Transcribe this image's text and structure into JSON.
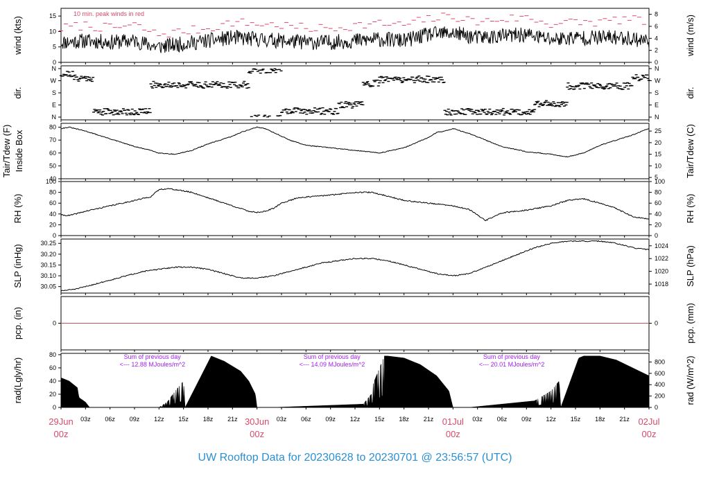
{
  "footer": {
    "title": "UW Rooftop Data for 20230628  to  20230701 @ 23:56:57  (UTC)"
  },
  "colors": {
    "trace": "#000000",
    "peak": "#d94a6a",
    "annotation": "#a020f0",
    "day_label": "#d94a6a",
    "footer": "#2b8fd0",
    "pcp_line": "#c8505a"
  },
  "time_axis": {
    "hour_ticks": [
      "03z",
      "06z",
      "09z",
      "12z",
      "15z",
      "18z",
      "21z",
      "03z",
      "06z",
      "09z",
      "12z",
      "15z",
      "18z",
      "21z",
      "03z",
      "06z",
      "09z",
      "12z",
      "15z",
      "18z",
      "21z"
    ],
    "day_labels": [
      {
        "date": "29Jun",
        "time": "00z"
      },
      {
        "date": "30Jun",
        "time": "00z"
      },
      {
        "date": "01Jul",
        "time": "00z"
      },
      {
        "date": "02Jul",
        "time": "00z"
      }
    ]
  },
  "chart_data": [
    {
      "id": "wind",
      "type": "line",
      "ylabel": "wind (kts)",
      "ylabel_right": "wind (m/s)",
      "ylim": [
        0,
        17.5
      ],
      "yticks": [
        0,
        5,
        10,
        15
      ],
      "right_ylim": [
        0,
        9
      ],
      "right_yticks": [
        0,
        2,
        4,
        6,
        8
      ],
      "annotation": "10 min. peak winds in red",
      "series": [
        {
          "name": "",
          "x": [
            0,
            3,
            6,
            9,
            11.8,
            15,
            18,
            21,
            24,
            27,
            30,
            33,
            36,
            39,
            42,
            45,
            48,
            51,
            54,
            57,
            60,
            63,
            66,
            69,
            72
          ],
          "y": [
            6.5,
            7,
            6.5,
            7,
            5,
            6,
            7,
            8,
            7.5,
            7,
            6.5,
            6.5,
            7,
            7.5,
            7,
            9,
            9.5,
            8,
            8.5,
            9,
            7.5,
            8,
            8,
            8,
            7
          ]
        },
        {
          "name": "10 min. peak winds",
          "x": [
            0,
            3,
            6,
            9,
            11.8,
            15,
            18,
            21,
            24,
            27,
            30,
            33,
            36,
            39,
            42,
            45,
            48,
            51,
            54,
            57,
            60,
            63,
            66,
            69,
            72
          ],
          "y": [
            11,
            12,
            11,
            12,
            9,
            10,
            11,
            13,
            12.5,
            12,
            11,
            11,
            12,
            12.5,
            12,
            14,
            15,
            13,
            14,
            14.5,
            12.5,
            13,
            13,
            14,
            13
          ]
        }
      ]
    },
    {
      "id": "dir",
      "type": "scatter",
      "ylabel": "dir.",
      "ylabel_right": "dir.",
      "ylim": [
        0,
        360
      ],
      "ytick_labels": [
        "N",
        "E",
        "S",
        "W",
        "N"
      ],
      "yticks": [
        0,
        90,
        180,
        270,
        360
      ],
      "segments": [
        {
          "x0": 0,
          "x1": 1.5,
          "deg": 320
        },
        {
          "x0": 1.5,
          "x1": 4,
          "deg": 290
        },
        {
          "x0": 4,
          "x1": 11,
          "deg": 40
        },
        {
          "x0": 11,
          "x1": 23,
          "deg": 240
        },
        {
          "x0": 23,
          "x1": 27,
          "deg": 350
        },
        {
          "x0": 27,
          "x1": 34,
          "deg": 45
        },
        {
          "x0": 34,
          "x1": 37,
          "deg": 90
        },
        {
          "x0": 37,
          "x1": 39,
          "deg": 250
        },
        {
          "x0": 39,
          "x1": 47,
          "deg": 280
        },
        {
          "x0": 47,
          "x1": 58,
          "deg": 40
        },
        {
          "x0": 58,
          "x1": 62,
          "deg": 100
        },
        {
          "x0": 62,
          "x1": 70,
          "deg": 230
        },
        {
          "x0": 70,
          "x1": 72,
          "deg": 290
        }
      ]
    },
    {
      "id": "tair",
      "type": "line",
      "ylabel": "Tair/Tdew (F)",
      "ylabel2": "Inside Box",
      "ylabel_right": "Tair/Tdew (C)",
      "ylim": [
        40,
        83
      ],
      "yticks": [
        40,
        50,
        60,
        70,
        80
      ],
      "right_ylim": [
        4.44,
        28.33
      ],
      "right_yticks": [
        5,
        10,
        15,
        20,
        25
      ],
      "series": [
        {
          "name": "",
          "x": [
            0,
            1,
            3,
            6,
            9,
            11,
            12,
            14,
            16,
            18,
            21,
            22,
            23,
            24,
            25,
            26,
            28,
            30,
            33,
            36,
            39,
            42,
            45,
            46,
            47,
            48,
            50,
            52,
            54,
            57,
            60,
            62,
            64,
            66,
            68,
            70,
            72
          ],
          "y": [
            79,
            80,
            77,
            71,
            65,
            62,
            60,
            59,
            62,
            67,
            73,
            76,
            78,
            80,
            79,
            76,
            70,
            66,
            64,
            62,
            60,
            64,
            72,
            76,
            77,
            79,
            75,
            70,
            65,
            61,
            59,
            57,
            60,
            66,
            70,
            74,
            79
          ]
        }
      ]
    },
    {
      "id": "rh",
      "type": "line",
      "ylabel": "RH (%)",
      "ylabel_right": "RH (%)",
      "ylim": [
        0,
        100
      ],
      "yticks": [
        0,
        20,
        40,
        60,
        80,
        100
      ],
      "series": [
        {
          "name": "",
          "x": [
            0,
            1,
            3,
            6,
            9,
            11,
            12,
            13,
            14,
            16,
            18,
            21,
            23,
            24,
            25,
            26,
            27,
            29,
            33,
            36,
            38,
            40,
            42,
            45,
            48,
            50,
            51,
            52,
            53,
            54,
            57,
            60,
            62,
            64,
            66,
            68,
            70,
            72
          ],
          "y": [
            38,
            37,
            45,
            55,
            65,
            72,
            85,
            87,
            85,
            80,
            70,
            55,
            45,
            43,
            45,
            50,
            60,
            70,
            75,
            80,
            80,
            73,
            65,
            60,
            55,
            48,
            38,
            28,
            35,
            42,
            47,
            55,
            65,
            68,
            60,
            50,
            35,
            30
          ]
        }
      ]
    },
    {
      "id": "slp",
      "type": "line",
      "ylabel": "SLP (inHg)",
      "ylabel_right": "SLP (hPa)",
      "ylim": [
        30.02,
        30.27
      ],
      "yticks": [
        30.05,
        30.1,
        30.15,
        30.2,
        30.25
      ],
      "right_yticks": [
        1018,
        1020,
        1022,
        1024
      ],
      "series": [
        {
          "name": "",
          "x": [
            0,
            2,
            4,
            6,
            8,
            10,
            12,
            14,
            16,
            18,
            20,
            22,
            24,
            26,
            28,
            30,
            32,
            34,
            36,
            38,
            40,
            42,
            44,
            46,
            48,
            50,
            52,
            54,
            56,
            58,
            60,
            62,
            64,
            66,
            68,
            70,
            72
          ],
          "y": [
            30.03,
            30.04,
            30.06,
            30.08,
            30.1,
            30.12,
            30.13,
            30.14,
            30.14,
            30.13,
            30.11,
            30.09,
            30.09,
            30.1,
            30.12,
            30.14,
            30.16,
            30.17,
            30.18,
            30.18,
            30.17,
            30.15,
            30.13,
            30.11,
            30.1,
            30.11,
            30.14,
            30.17,
            30.2,
            30.23,
            30.25,
            30.26,
            30.26,
            30.26,
            30.25,
            30.23,
            30.22
          ]
        }
      ]
    },
    {
      "id": "pcp",
      "type": "line",
      "ylabel": "pcp. (in)",
      "ylabel_right": "pcp. (mm)",
      "ylim": [
        -1,
        1
      ],
      "yticks": [
        0
      ],
      "right_yticks": [
        0
      ],
      "series": [
        {
          "name": "",
          "x": [
            0,
            72
          ],
          "y": [
            0,
            0
          ]
        }
      ]
    },
    {
      "id": "rad",
      "type": "area",
      "ylabel": "rad(Lgly/hr)",
      "ylabel_right": "rad (W/m^2)",
      "ylim": [
        0,
        82
      ],
      "yticks": [
        0,
        20,
        40,
        60,
        80
      ],
      "right_ylim": [
        0,
        952
      ],
      "right_yticks": [
        0,
        200,
        400,
        600,
        800
      ],
      "annotations": [
        {
          "line1": "Sum of previous day",
          "line2": "<--- 12.88 MJoules/m^2",
          "x": 6
        },
        {
          "line1": "Sum of previous day",
          "line2": "<--- 14.09 MJoules/m^2",
          "x": 28
        },
        {
          "line1": "Sum of previous day",
          "line2": "<--- 20.01 MJoules/m^2",
          "x": 50
        }
      ],
      "series": [
        {
          "name": "",
          "x": [
            0,
            1,
            2,
            2.2,
            3,
            3.5,
            12,
            13,
            14,
            15,
            15.2,
            18.4,
            19,
            20,
            22,
            23,
            23.8,
            24,
            26,
            37,
            38,
            38.2,
            39.6,
            40,
            42,
            44,
            46,
            47.5,
            48,
            50,
            58,
            60,
            61,
            61.2,
            63.4,
            64,
            66,
            68,
            70,
            72
          ],
          "y": [
            45,
            40,
            30,
            15,
            8,
            0,
            0,
            8,
            25,
            40,
            0,
            78,
            75,
            70,
            55,
            40,
            20,
            0,
            0,
            5,
            20,
            35,
            78,
            78,
            75,
            65,
            48,
            25,
            0,
            0,
            10,
            25,
            40,
            0,
            75,
            78,
            78,
            72,
            60,
            48
          ]
        }
      ]
    }
  ]
}
